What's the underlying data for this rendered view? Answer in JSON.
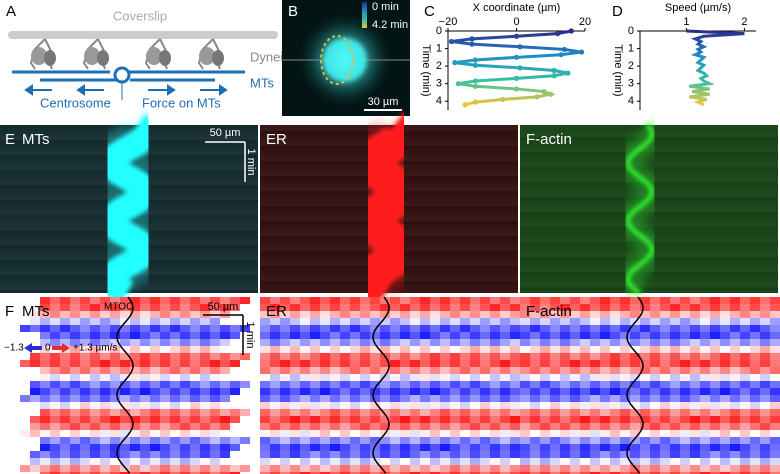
{
  "panels": {
    "a": {
      "label": "A",
      "coverslip": "Coverslip",
      "dynein": "Dynein",
      "mts": "MTs",
      "centrosome": "Centrosome",
      "force": "Force on MTs"
    },
    "b": {
      "label": "B",
      "colorbar_start": "0 min",
      "colorbar_end": "4.2 min",
      "scale_bar": "30 µm"
    },
    "e": {
      "label": "E",
      "titles": [
        "MTs",
        "ER",
        "F-actin"
      ],
      "scale_x": "50 µm",
      "scale_t": "1 min"
    },
    "f": {
      "label": "F",
      "titles": [
        "MTs",
        "ER",
        "F-actin"
      ],
      "mtoc": "MTOC",
      "scale_x": "50 µm",
      "scale_t": "1 min",
      "legend_min": "−1.3",
      "legend_mid": "0",
      "legend_max": "+1.3 µm/s"
    }
  },
  "chart_data": [
    {
      "type": "trajectory",
      "panel_label": "C",
      "x_label": "X coordinate (µm)",
      "y_label": "Time (min)",
      "y": [
        0,
        0.15,
        0.3,
        0.45,
        0.6,
        0.75,
        0.9,
        1.05,
        1.2,
        1.35,
        1.5,
        1.65,
        1.8,
        1.95,
        2.1,
        2.25,
        2.4,
        2.55,
        2.7,
        2.85,
        3,
        3.15,
        3.3,
        3.45,
        3.6,
        3.75,
        3.9,
        4.05,
        4.2
      ],
      "x": [
        16,
        12,
        0,
        -13,
        -19,
        -13,
        1,
        14,
        19,
        13,
        0,
        -12,
        -18,
        -12,
        1,
        11,
        15,
        11,
        0,
        -12,
        -17,
        -12,
        0,
        8,
        10,
        6,
        -4,
        -12,
        -15
      ],
      "xlim": [
        -20,
        20
      ],
      "xticks": [
        {
          "value": -20,
          "label": "−20"
        },
        0,
        20
      ],
      "ylim": [
        0,
        4.5
      ],
      "yticks": [
        0,
        1,
        2,
        3,
        4
      ],
      "colors": [
        "#2b2c8c",
        "#1f8dc9",
        "#35c0a2",
        "#f0c53d"
      ],
      "markers": true
    },
    {
      "type": "trajectory",
      "panel_label": "D",
      "x_label": "Speed (µm/s)",
      "y_label": "Time (min)",
      "y": [
        0,
        0.15,
        0.3,
        0.45,
        0.6,
        0.75,
        0.9,
        1.05,
        1.2,
        1.35,
        1.5,
        1.65,
        1.8,
        1.95,
        2.1,
        2.25,
        2.4,
        2.55,
        2.7,
        2.85,
        3,
        3.15,
        3.3,
        3.45,
        3.6,
        3.75,
        3.9,
        4.05,
        4.2
      ],
      "x": [
        1.0,
        2.0,
        1.3,
        1.15,
        1.25,
        1.2,
        1.3,
        1.2,
        1.25,
        1.15,
        1.3,
        1.25,
        1.2,
        1.3,
        1.25,
        1.2,
        1.3,
        1.35,
        1.25,
        1.3,
        1.4,
        1.05,
        1.4,
        1.1,
        1.4,
        1.05,
        1.35,
        1.2,
        1.3
      ],
      "xlim": [
        0.2,
        2.2
      ],
      "xticks": [
        1,
        2
      ],
      "ylim": [
        0,
        4.5
      ],
      "yticks": [
        0,
        1,
        2,
        3,
        4
      ],
      "colors": [
        "#2b2c8c",
        "#1f8dc9",
        "#35c0a2",
        "#f0c53d"
      ],
      "markers": false
    }
  ]
}
